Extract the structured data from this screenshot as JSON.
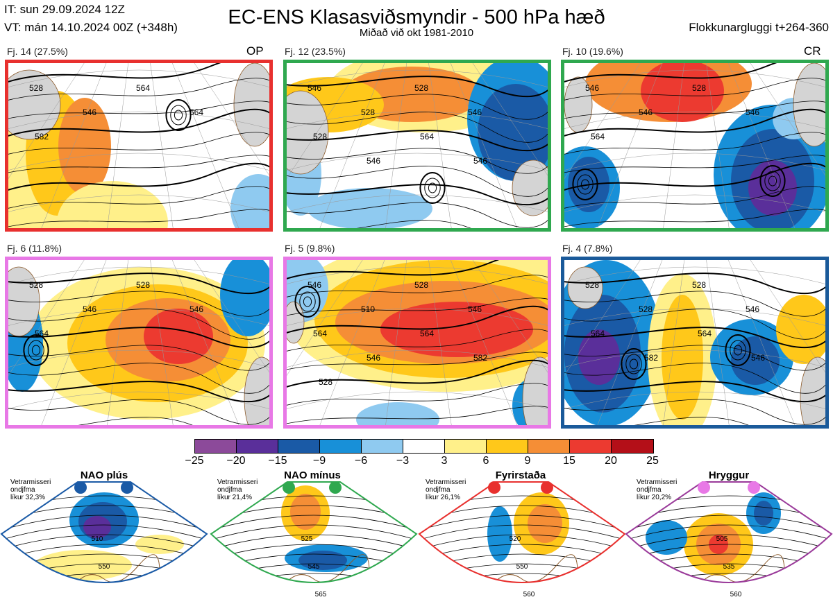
{
  "header": {
    "it": "IT: sun 29.09.2024 12Z",
    "vt": "VT: mán 14.10.2024 00Z  (+348h)",
    "title": "EC-ENS Klasasviðsmyndir - 500 hPa hæð",
    "subtitle": "Miðað við okt 1981-2010",
    "window": "Flokkunargluggi t+264-360"
  },
  "panels": [
    {
      "label": "Fj. 14 (27.5%)",
      "tag": "OP",
      "color": "#e8302e",
      "contours": [
        "528",
        "546",
        "564",
        "564",
        "582"
      ]
    },
    {
      "label": "Fj. 12 (23.5%)",
      "tag": "",
      "color": "#2fa84f",
      "contours": [
        "546",
        "528",
        "528",
        "546",
        "528",
        "546",
        "564",
        "546"
      ]
    },
    {
      "label": "Fj. 10 (19.6%)",
      "tag": "CR",
      "color": "#2fa84f",
      "contours": [
        "546",
        "546",
        "528",
        "546",
        "564"
      ]
    },
    {
      "label": "Fj. 6 (11.8%)",
      "tag": "",
      "color": "#e878e6",
      "contours": [
        "528",
        "546",
        "528",
        "546",
        "564"
      ]
    },
    {
      "label": "Fj. 5 (9.8%)",
      "tag": "",
      "color": "#e878e6",
      "contours": [
        "546",
        "510",
        "528",
        "546",
        "564",
        "546",
        "564",
        "582",
        "528"
      ]
    },
    {
      "label": "Fj. 4 (7.8%)",
      "tag": "",
      "color": "#1a5a9a",
      "contours": [
        "528",
        "528",
        "528",
        "546",
        "564",
        "582",
        "564",
        "546"
      ]
    }
  ],
  "colorbar": {
    "ticks": [
      "−25",
      "−20",
      "−15",
      "−9",
      "−6",
      "−3",
      "3",
      "6",
      "9",
      "15",
      "20",
      "25"
    ],
    "colors": [
      "#8c4a9a",
      "#5a2f9a",
      "#1a5aa6",
      "#1890d8",
      "#8fcaf0",
      "#ffffff",
      "#fff08a",
      "#ffc81a",
      "#f58e36",
      "#ec3a30",
      "#b40f18"
    ]
  },
  "regimes": [
    {
      "name": "NAO plús",
      "note": [
        "Vetrarmisseri",
        "ondjfma",
        "líkur 32,3%"
      ],
      "color": "#1a5aa6",
      "contours": [
        "510",
        "550"
      ]
    },
    {
      "name": "NAO mínus",
      "note": [
        "Vetrarmisseri",
        "ondjfma",
        "líkur 21,4%"
      ],
      "color": "#2fa84f",
      "contours": [
        "525",
        "545",
        "565"
      ]
    },
    {
      "name": "Fyrirstaða",
      "note": [
        "Vetrarmisseri",
        "ondjfma",
        "líkur 26,1%"
      ],
      "color": "#e8302e",
      "contours": [
        "520",
        "550",
        "560"
      ]
    },
    {
      "name": "Hryggur",
      "note": [
        "Vetrarmisseri",
        "ondjfma",
        "líkur 20,2%"
      ],
      "color": "#9a3a9a",
      "contours": [
        "505",
        "535",
        "560"
      ]
    }
  ],
  "regime_dot_colors": [
    "#1a5aa6",
    "#2fa84f",
    "#e8302e",
    "#e878e6"
  ]
}
